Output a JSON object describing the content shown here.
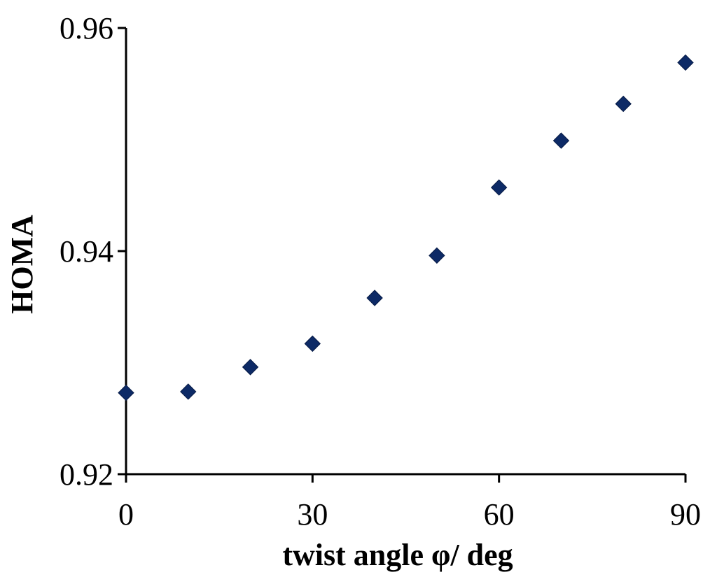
{
  "chart_data": {
    "type": "scatter",
    "xlabel": "twist angle φ/ deg",
    "ylabel": "HOMA",
    "xlim": [
      0,
      90
    ],
    "ylim": [
      0.92,
      0.96
    ],
    "xticks": [
      "0",
      "30",
      "60",
      "90"
    ],
    "yticks": [
      "0.92",
      "0.94",
      "0.96"
    ],
    "grid": false,
    "legend": "none",
    "marker": "diamond",
    "marker_color": "#0d2a66",
    "series": [
      {
        "x": [
          0,
          10,
          20,
          30,
          40,
          50,
          60,
          70,
          80,
          90
        ],
        "y": [
          0.9273,
          0.9274,
          0.9296,
          0.9317,
          0.9358,
          0.9396,
          0.9457,
          0.9499,
          0.9532,
          0.9569
        ]
      }
    ]
  }
}
